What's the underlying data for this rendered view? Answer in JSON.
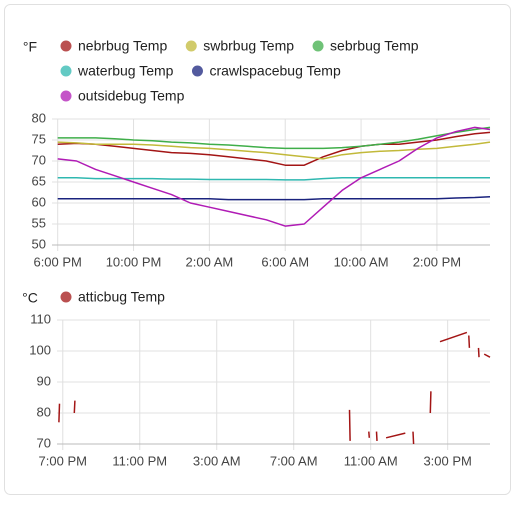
{
  "chart_data": [
    {
      "type": "line",
      "y_label": "°F",
      "x": [
        18,
        19,
        20,
        21,
        22,
        23,
        24,
        25,
        26,
        27,
        28,
        29,
        30,
        31,
        32,
        33,
        34,
        35,
        36,
        37,
        38,
        39,
        40,
        40.8
      ],
      "series": [
        {
          "name": "nebrbug Temp",
          "color": "#a31515",
          "values": [
            74,
            74.2,
            74,
            73.5,
            73,
            72.5,
            72,
            71.8,
            71.5,
            71,
            70.5,
            70,
            69,
            69,
            71,
            72.5,
            73.5,
            74,
            74,
            74.5,
            75,
            75.8,
            76.5,
            76.8
          ]
        },
        {
          "name": "swbrbug Temp",
          "color": "#c2b93a",
          "values": [
            74.5,
            74.3,
            74,
            74,
            74,
            73.8,
            73.5,
            73.2,
            73,
            72.7,
            72.3,
            72,
            71.5,
            71,
            70.5,
            71.5,
            72,
            72.3,
            72.5,
            72.8,
            73,
            73.5,
            74,
            74.5
          ]
        },
        {
          "name": "sebrbug Temp",
          "color": "#3fae49",
          "values": [
            75.5,
            75.5,
            75.5,
            75.3,
            75,
            74.8,
            74.5,
            74.3,
            74,
            73.8,
            73.5,
            73.2,
            73,
            73,
            73,
            73.2,
            73.5,
            74,
            74.5,
            75.2,
            76,
            76.8,
            77.5,
            78
          ]
        },
        {
          "name": "waterbug Temp",
          "color": "#2fb8b0",
          "values": [
            66,
            66,
            65.8,
            65.8,
            65.8,
            65.8,
            65.7,
            65.7,
            65.6,
            65.6,
            65.6,
            65.6,
            65.5,
            65.5,
            65.8,
            66,
            66,
            66,
            66,
            66,
            66,
            66,
            66,
            66
          ]
        },
        {
          "name": "crawlspacebug Temp",
          "color": "#1a237e",
          "values": [
            61,
            61,
            61,
            61,
            61,
            61,
            61,
            61,
            61,
            60.8,
            60.8,
            60.8,
            60.8,
            60.8,
            61,
            61,
            61,
            61,
            61,
            61,
            61,
            61.2,
            61.3,
            61.5
          ]
        },
        {
          "name": "outsidebug Temp",
          "color": "#b01bb5",
          "values": [
            70.5,
            70,
            68,
            66.5,
            65,
            63.5,
            62,
            60,
            59,
            58,
            57,
            56,
            54.5,
            55,
            59,
            63,
            66,
            68,
            70,
            73,
            75.5,
            77,
            78,
            77.5
          ]
        }
      ],
      "xlim": [
        17.7,
        40.8
      ],
      "xticks": [
        {
          "value": 18,
          "label": "6:00 PM"
        },
        {
          "value": 22,
          "label": "10:00 PM"
        },
        {
          "value": 26,
          "label": "2:00 AM"
        },
        {
          "value": 30,
          "label": "6:00 AM"
        },
        {
          "value": 34,
          "label": "10:00 AM"
        },
        {
          "value": 38,
          "label": "2:00 PM"
        }
      ],
      "ylim": [
        50,
        80
      ],
      "yticks": [
        50,
        55,
        60,
        65,
        70,
        75,
        80
      ],
      "grid": true
    },
    {
      "type": "line",
      "y_label": "°C",
      "x": [
        18.8,
        18.83,
        19,
        19.6,
        19.63,
        20,
        33.9,
        33.93,
        34,
        34.9,
        34.93,
        35,
        35.3,
        35.33,
        35.5,
        35.8,
        36.8,
        37,
        37.2,
        37.23,
        37.5,
        38.1,
        38.13,
        38.3,
        38.6,
        40,
        40.05,
        40.1,
        40.13,
        40.3,
        40.6,
        40.63,
        40.7,
        40.9,
        41.2
      ],
      "series": [
        {
          "name": "atticbug Temp",
          "color": "#a31515",
          "values": [
            77,
            83,
            null,
            80,
            84,
            null,
            81,
            71,
            null,
            74,
            72,
            null,
            74,
            71,
            null,
            72,
            73.5,
            null,
            74,
            70,
            null,
            80,
            87,
            null,
            103,
            106,
            null,
            105,
            101,
            null,
            101,
            98,
            null,
            99,
            98
          ]
        }
      ],
      "xlim": [
        18.7,
        41.2
      ],
      "xticks": [
        {
          "value": 19,
          "label": "7:00 PM"
        },
        {
          "value": 23,
          "label": "11:00 PM"
        },
        {
          "value": 27,
          "label": "3:00 AM"
        },
        {
          "value": 31,
          "label": "7:00 AM"
        },
        {
          "value": 35,
          "label": "11:00 AM"
        },
        {
          "value": 39,
          "label": "3:00 PM"
        }
      ],
      "ylim": [
        70,
        110
      ],
      "yticks": [
        70,
        80,
        90,
        100,
        110
      ],
      "grid": true
    }
  ]
}
